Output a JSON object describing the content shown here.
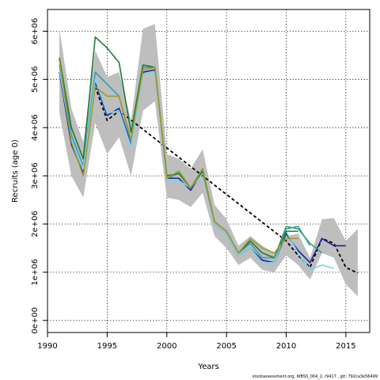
{
  "chart_data": {
    "type": "line",
    "title": "",
    "xlabel": "Years",
    "ylabel": "Recruits (age 0)",
    "xlim": [
      1990,
      2017
    ],
    "ylim": [
      -250000,
      6450000
    ],
    "x_ticks": [
      1990,
      1995,
      2000,
      2005,
      2010,
      2015
    ],
    "x_tick_labels": [
      "1990",
      "1995",
      "2000",
      "2005",
      "2010",
      "2015"
    ],
    "y_ticks": [
      0,
      1000000,
      2000000,
      3000000,
      4000000,
      5000000,
      6000000
    ],
    "y_tick_labels": [
      "0e+00",
      "1e+06",
      "2e+06",
      "3e+06",
      "4e+06",
      "5e+06",
      "6e+06"
    ],
    "grid": "dotted",
    "band": {
      "color": "#bebebe",
      "x": [
        1991,
        1992,
        1993,
        1994,
        1995,
        1996,
        1997,
        1998,
        1999,
        2000,
        2001,
        2002,
        2003,
        2004,
        2005,
        2006,
        2007,
        2008,
        2009,
        2010,
        2011,
        2012,
        2013,
        2014,
        2015,
        2016
      ],
      "upper": [
        6050000,
        4400000,
        3700000,
        5600000,
        5050000,
        5150000,
        4150000,
        6050000,
        6150000,
        3450000,
        3350000,
        3150000,
        3550000,
        2400000,
        2100000,
        1550000,
        1750000,
        1550000,
        1400000,
        1750000,
        1800000,
        1300000,
        2100000,
        2120000,
        1650000,
        1900000
      ],
      "lower": [
        4300000,
        3000000,
        2550000,
        4100000,
        3450000,
        3800000,
        3000000,
        4350000,
        4550000,
        2550000,
        2500000,
        2350000,
        2650000,
        1750000,
        1500000,
        1150000,
        1300000,
        1050000,
        1000000,
        1350000,
        1150000,
        850000,
        1400000,
        1300000,
        750000,
        500000
      ]
    },
    "series": [
      {
        "color": "#000000",
        "dashed": true,
        "x": [
          1994,
          1995,
          1996,
          2010,
          2011,
          2012,
          2013,
          2014,
          2015,
          2016
        ],
        "values": [
          4850000,
          4150000,
          4350000,
          1650000,
          1350000,
          1100000,
          1700000,
          1600000,
          1100000,
          980000
        ]
      },
      {
        "color": "#1f1f9a",
        "dashed": false,
        "x": [
          1991,
          1992,
          1993,
          1994,
          1995,
          1996,
          1997,
          1998,
          1999,
          2000,
          2001,
          2002,
          2003,
          2004,
          2005,
          2006,
          2007,
          2008,
          2009,
          2010,
          2011,
          2012,
          2013,
          2014,
          2015
        ],
        "values": [
          5150000,
          3650000,
          3050000,
          4950000,
          4250000,
          4400000,
          3650000,
          5150000,
          5200000,
          2950000,
          2950000,
          2700000,
          3100000,
          2000000,
          1800000,
          1350000,
          1500000,
          1250000,
          1200000,
          1800000,
          1450000,
          1200000,
          1700000,
          1550000,
          1550000
        ]
      },
      {
        "color": "#2fa0b5",
        "dashed": false,
        "x": [
          1991,
          1992,
          1993,
          1994,
          1995,
          1996,
          1997,
          1998,
          1999,
          2000,
          2001,
          2002,
          2003,
          2004,
          2005,
          2006,
          2007,
          2008,
          2009,
          2010,
          2011,
          2012
        ],
        "values": [
          5300000,
          3850000,
          3200000,
          5150000,
          4900000,
          4650000,
          3700000,
          5250000,
          5250000,
          2950000,
          3050000,
          2750000,
          3150000,
          2050000,
          1850000,
          1400000,
          1600000,
          1300000,
          1300000,
          1900000,
          1950000,
          1550000
        ]
      },
      {
        "color": "#7fd1ea",
        "dashed": false,
        "x": [
          1991,
          1992,
          1993,
          1994,
          1995,
          1996,
          1997,
          1998,
          1999,
          2000,
          2001,
          2002,
          2003,
          2004,
          2005,
          2006,
          2007,
          2008,
          2009,
          2010,
          2011,
          2012,
          2013,
          2014
        ],
        "values": [
          5200000,
          3750000,
          3150000,
          5000000,
          4300000,
          4350000,
          3600000,
          5100000,
          5150000,
          2900000,
          2900000,
          2750000,
          3050000,
          2000000,
          1800000,
          1350000,
          1500000,
          1200000,
          1200000,
          1850000,
          1400000,
          1050000,
          1150000,
          1080000
        ]
      },
      {
        "color": "#1f7a3a",
        "dashed": false,
        "x": [
          1991,
          1992,
          1993,
          1994,
          1995,
          1996,
          1997,
          1998,
          1999,
          2000,
          2001,
          2002,
          2003,
          2004,
          2005,
          2006,
          2007,
          2008,
          2009,
          2010,
          2011
        ],
        "values": [
          5450000,
          4000000,
          3350000,
          5880000,
          5650000,
          5350000,
          3900000,
          5300000,
          5250000,
          3000000,
          3050000,
          2750000,
          3100000,
          2050000,
          1850000,
          1400000,
          1650000,
          1400000,
          1300000,
          1850000,
          1850000
        ]
      },
      {
        "color": "#3aa86a",
        "dashed": false,
        "x": [
          2009,
          2010,
          2011,
          2012,
          2013
        ],
        "values": [
          1300000,
          1950000,
          1900000,
          1600000,
          1400000
        ]
      },
      {
        "color": "#a09a2a",
        "dashed": false,
        "x": [
          1991,
          1992,
          1993,
          1994,
          1995,
          1996,
          1997,
          1998,
          1999,
          2000,
          2001,
          2002,
          2003,
          2004,
          2005,
          2006,
          2007,
          2008,
          2009,
          2010,
          2011
        ],
        "values": [
          5400000,
          3700000,
          3000000,
          4850000,
          4650000,
          4650000,
          3750000,
          5200000,
          5250000,
          2950000,
          3100000,
          2750000,
          3150000,
          2050000,
          1850000,
          1400000,
          1700000,
          1500000,
          1400000,
          1700000,
          1700000
        ]
      }
    ],
    "footnote": "stockassessment.org, WBSS_004_2, r9417 , git: 792ca3e56499"
  }
}
